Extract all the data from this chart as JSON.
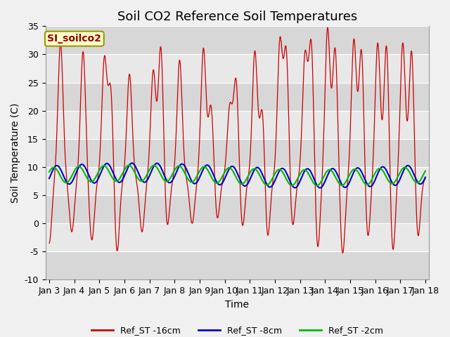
{
  "title": "Soil CO2 Reference Soil Temperatures",
  "xlabel": "Time",
  "ylabel": "Soil Temperature (C)",
  "ylim": [
    -10,
    35
  ],
  "xlim_min": -0.15,
  "xlim_max": 15.15,
  "xtick_labels": [
    "Jan 3",
    "Jan 4",
    "Jan 5",
    "Jan 6",
    "Jan 7",
    "Jan 8",
    "Jan 9",
    "Jan 10",
    "Jan 11",
    "Jan 12",
    "Jan 13",
    "Jan 14",
    "Jan 15",
    "Jan 16",
    "Jan 17",
    "Jan 18"
  ],
  "ytick_values": [
    -10,
    -5,
    0,
    5,
    10,
    15,
    20,
    25,
    30,
    35
  ],
  "site_label": "SI_soilco2",
  "fig_bg": "#f0f0f0",
  "ax_bg": "#e8e8e8",
  "band_color": "#d0d0d0",
  "grid_color": "#ffffff",
  "color_red": "#cc0000",
  "color_blue": "#0000cc",
  "color_green": "#00bb00",
  "legend_labels": [
    "Ref_ST -16cm",
    "Ref_ST -8cm",
    "Ref_ST -2cm"
  ],
  "title_fontsize": 13,
  "label_fontsize": 10,
  "tick_fontsize": 9,
  "site_label_fontsize": 10,
  "site_label_color": "#990000",
  "site_label_bg": "#ffffcc",
  "site_label_edge": "#999900",
  "red_peaks": [
    0.45,
    1.35,
    2.2,
    2.45,
    3.2,
    4.15,
    4.45,
    5.2,
    6.15,
    6.45,
    7.2,
    7.45,
    8.2,
    8.5,
    9.2,
    9.45,
    10.2,
    10.45,
    11.1,
    11.4,
    12.15,
    12.45,
    13.1,
    13.45,
    14.1,
    14.45
  ],
  "red_peak_vals": [
    32.0,
    30.5,
    29.0,
    24.0,
    26.5,
    27.0,
    31.5,
    29.0,
    31.0,
    21.0,
    20.5,
    25.5,
    30.5,
    21.0,
    32.0,
    30.5,
    29.5,
    32.0,
    34.5,
    31.0,
    32.5,
    31.0,
    32.0,
    32.0,
    32.0,
    31.0
  ],
  "red_troughs": [
    0.0,
    0.9,
    1.7,
    2.7,
    3.7,
    4.7,
    5.7,
    6.7,
    7.7,
    8.7,
    9.7,
    10.7,
    11.7,
    12.7,
    13.7,
    14.7
  ],
  "red_trough_vals": [
    -3.5,
    -1.5,
    -3.0,
    -5.5,
    -1.5,
    -1.0,
    0.0,
    0.5,
    -1.0,
    -3.5,
    -1.0,
    -5.0,
    -5.5,
    -3.0,
    -5.5,
    -3.0
  ]
}
